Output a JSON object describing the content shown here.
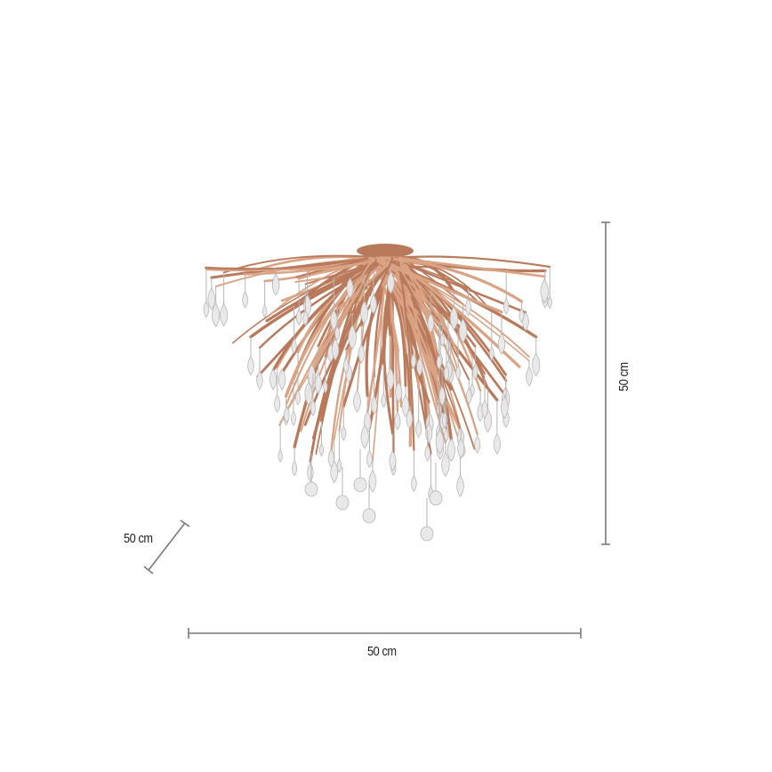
{
  "product": {
    "image_subject": "chandelier",
    "colors": {
      "branch": "#d9a384",
      "branch_dark": "#b97a5c",
      "drop": "#e9e9ea",
      "drop_edge": "#b8b4b2",
      "dimension_line": "#7a7a7a",
      "text": "#222222"
    }
  },
  "dimensions": {
    "height_label": "50 cm",
    "depth_label": "50 cm",
    "width_label": "50 cm"
  }
}
